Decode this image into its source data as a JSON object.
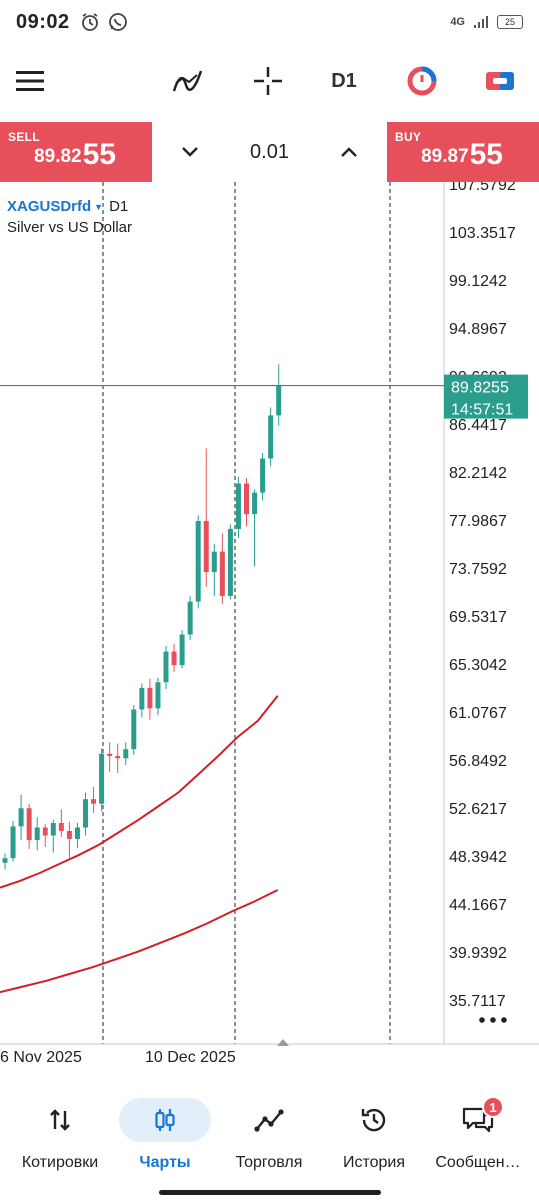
{
  "status": {
    "time": "09:02",
    "network": "4G",
    "battery": "25"
  },
  "toolbar": {
    "timeframe": "D1"
  },
  "trade": {
    "sell": {
      "label": "SELL",
      "price_main": "89.82",
      "price_big": "55"
    },
    "buy": {
      "label": "BUY",
      "price_main": "89.87",
      "price_big": "55"
    },
    "volume": "0.01"
  },
  "symbol": {
    "name": "XAGUSDrfd",
    "timeframe": "D1",
    "description": "Silver vs US Dollar"
  },
  "colors": {
    "sell": "#e7505a",
    "buy": "#e7505a",
    "bull": "#2a9d8f",
    "bear": "#e7505a",
    "ma": "#d11f26",
    "accent": "#1976d2"
  },
  "chart_data": {
    "type": "candlestick",
    "symbol": "XAGUSDrfd",
    "timeframe": "D1",
    "price_axis": [
      "107.5792",
      "103.3517",
      "99.1242",
      "94.8967",
      "90.6692",
      "86.4417",
      "82.2142",
      "77.9867",
      "73.7592",
      "69.5317",
      "65.3042",
      "61.0767",
      "56.8492",
      "52.6217",
      "48.3942",
      "44.1667",
      "39.9392",
      "35.7117"
    ],
    "time_axis": [
      "6 Nov 2025",
      "10 Dec 2025"
    ],
    "current_price": "89.8255",
    "countdown": "14:57:51",
    "candles": [
      [
        47.8,
        48.6,
        47.2,
        48.2
      ],
      [
        48.2,
        51.5,
        47.9,
        51.0
      ],
      [
        51.0,
        53.8,
        49.8,
        52.6
      ],
      [
        52.6,
        53.0,
        49.0,
        49.8
      ],
      [
        49.8,
        51.8,
        48.9,
        50.9
      ],
      [
        50.9,
        51.2,
        49.2,
        50.2
      ],
      [
        50.2,
        51.6,
        48.7,
        51.3
      ],
      [
        51.3,
        52.5,
        50.1,
        50.6
      ],
      [
        50.6,
        51.4,
        48.2,
        49.9
      ],
      [
        49.9,
        51.3,
        49.1,
        50.9
      ],
      [
        50.9,
        54.0,
        50.2,
        53.4
      ],
      [
        53.4,
        54.5,
        52.2,
        53.0
      ],
      [
        53.0,
        57.9,
        52.3,
        57.4
      ],
      [
        57.4,
        58.4,
        55.8,
        57.2
      ],
      [
        57.2,
        58.3,
        55.7,
        57.0
      ],
      [
        57.0,
        58.4,
        56.4,
        57.8
      ],
      [
        57.8,
        61.7,
        57.3,
        61.3
      ],
      [
        61.3,
        63.6,
        60.6,
        63.2
      ],
      [
        63.2,
        64.0,
        60.4,
        61.4
      ],
      [
        61.4,
        64.1,
        60.8,
        63.7
      ],
      [
        63.7,
        66.9,
        63.1,
        66.4
      ],
      [
        66.4,
        67.1,
        64.6,
        65.2
      ],
      [
        65.2,
        68.3,
        64.9,
        67.9
      ],
      [
        67.9,
        71.3,
        67.4,
        70.8
      ],
      [
        70.8,
        78.4,
        70.2,
        77.9
      ],
      [
        77.9,
        84.3,
        72.1,
        73.4
      ],
      [
        73.4,
        75.9,
        71.3,
        75.2
      ],
      [
        75.2,
        76.8,
        70.6,
        71.3
      ],
      [
        71.3,
        77.6,
        71.0,
        77.2
      ],
      [
        77.2,
        81.8,
        76.4,
        81.2
      ],
      [
        81.2,
        81.7,
        77.4,
        78.5
      ],
      [
        78.5,
        80.7,
        73.9,
        80.4
      ],
      [
        80.4,
        83.9,
        79.7,
        83.4
      ],
      [
        83.4,
        87.9,
        82.7,
        87.2
      ],
      [
        87.2,
        91.7,
        86.3,
        89.8
      ]
    ],
    "ma_fast": [
      45.6,
      46.2,
      46.9,
      47.7,
      48.5,
      49.4,
      50.5,
      51.6,
      52.8,
      54.0,
      55.6,
      57.2,
      58.9,
      60.3,
      62.5
    ],
    "ma_slow": [
      36.4,
      36.9,
      37.4,
      38.0,
      38.6,
      39.3,
      40.0,
      40.8,
      41.6,
      42.5,
      43.5,
      44.4,
      45.4
    ]
  },
  "nav": [
    {
      "label": "Котировки",
      "icon": "arrows-updown-icon"
    },
    {
      "label": "Чарты",
      "icon": "candles-icon",
      "active": true
    },
    {
      "label": "Торговля",
      "icon": "trend-line-icon"
    },
    {
      "label": "История",
      "icon": "history-icon"
    },
    {
      "label": "Сообщен…",
      "icon": "chat-icon",
      "badge": "1"
    }
  ]
}
